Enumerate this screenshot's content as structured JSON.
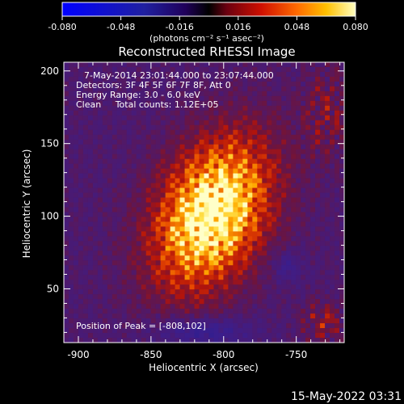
{
  "colorbar": {
    "ticks": [
      "-0.080",
      "-0.048",
      "-0.016",
      "0.016",
      "0.048",
      "0.080"
    ],
    "units": "(photons cm⁻² s⁻¹ asec⁻²)",
    "min": -0.08,
    "max": 0.08
  },
  "title": "Reconstructed RHESSI Image",
  "info": {
    "time_range": "7-May-2014 23:01:44.000 to 23:07:44.000",
    "detectors": "Detectors: 3F 4F 5F 6F 7F 8F, Att 0",
    "energy": "Energy Range: 3.0 - 6.0 keV",
    "method": "Clean     Total counts: 1.12E+05",
    "peak": "Position of Peak = [-808,102]"
  },
  "axes": {
    "xlabel": "Heliocentric X (arcsec)",
    "ylabel": "Heliocentric Y (arcsec)",
    "xlim": [
      -910,
      -717
    ],
    "ylim": [
      13,
      206
    ],
    "xticks": [
      -900,
      -850,
      -800,
      -750
    ],
    "yticks": [
      50,
      100,
      150,
      200
    ],
    "xtick_labels": [
      "-900",
      "-850",
      "-800",
      "-750"
    ],
    "ytick_labels": [
      "50",
      "100",
      "150",
      "200"
    ]
  },
  "peak": {
    "x": -808,
    "y": 102
  },
  "footer": {
    "date": "15-May-2022 03:31"
  },
  "colors": {
    "background": "#000000",
    "foreground": "#ffffff",
    "map_base": "#4a1a72"
  }
}
